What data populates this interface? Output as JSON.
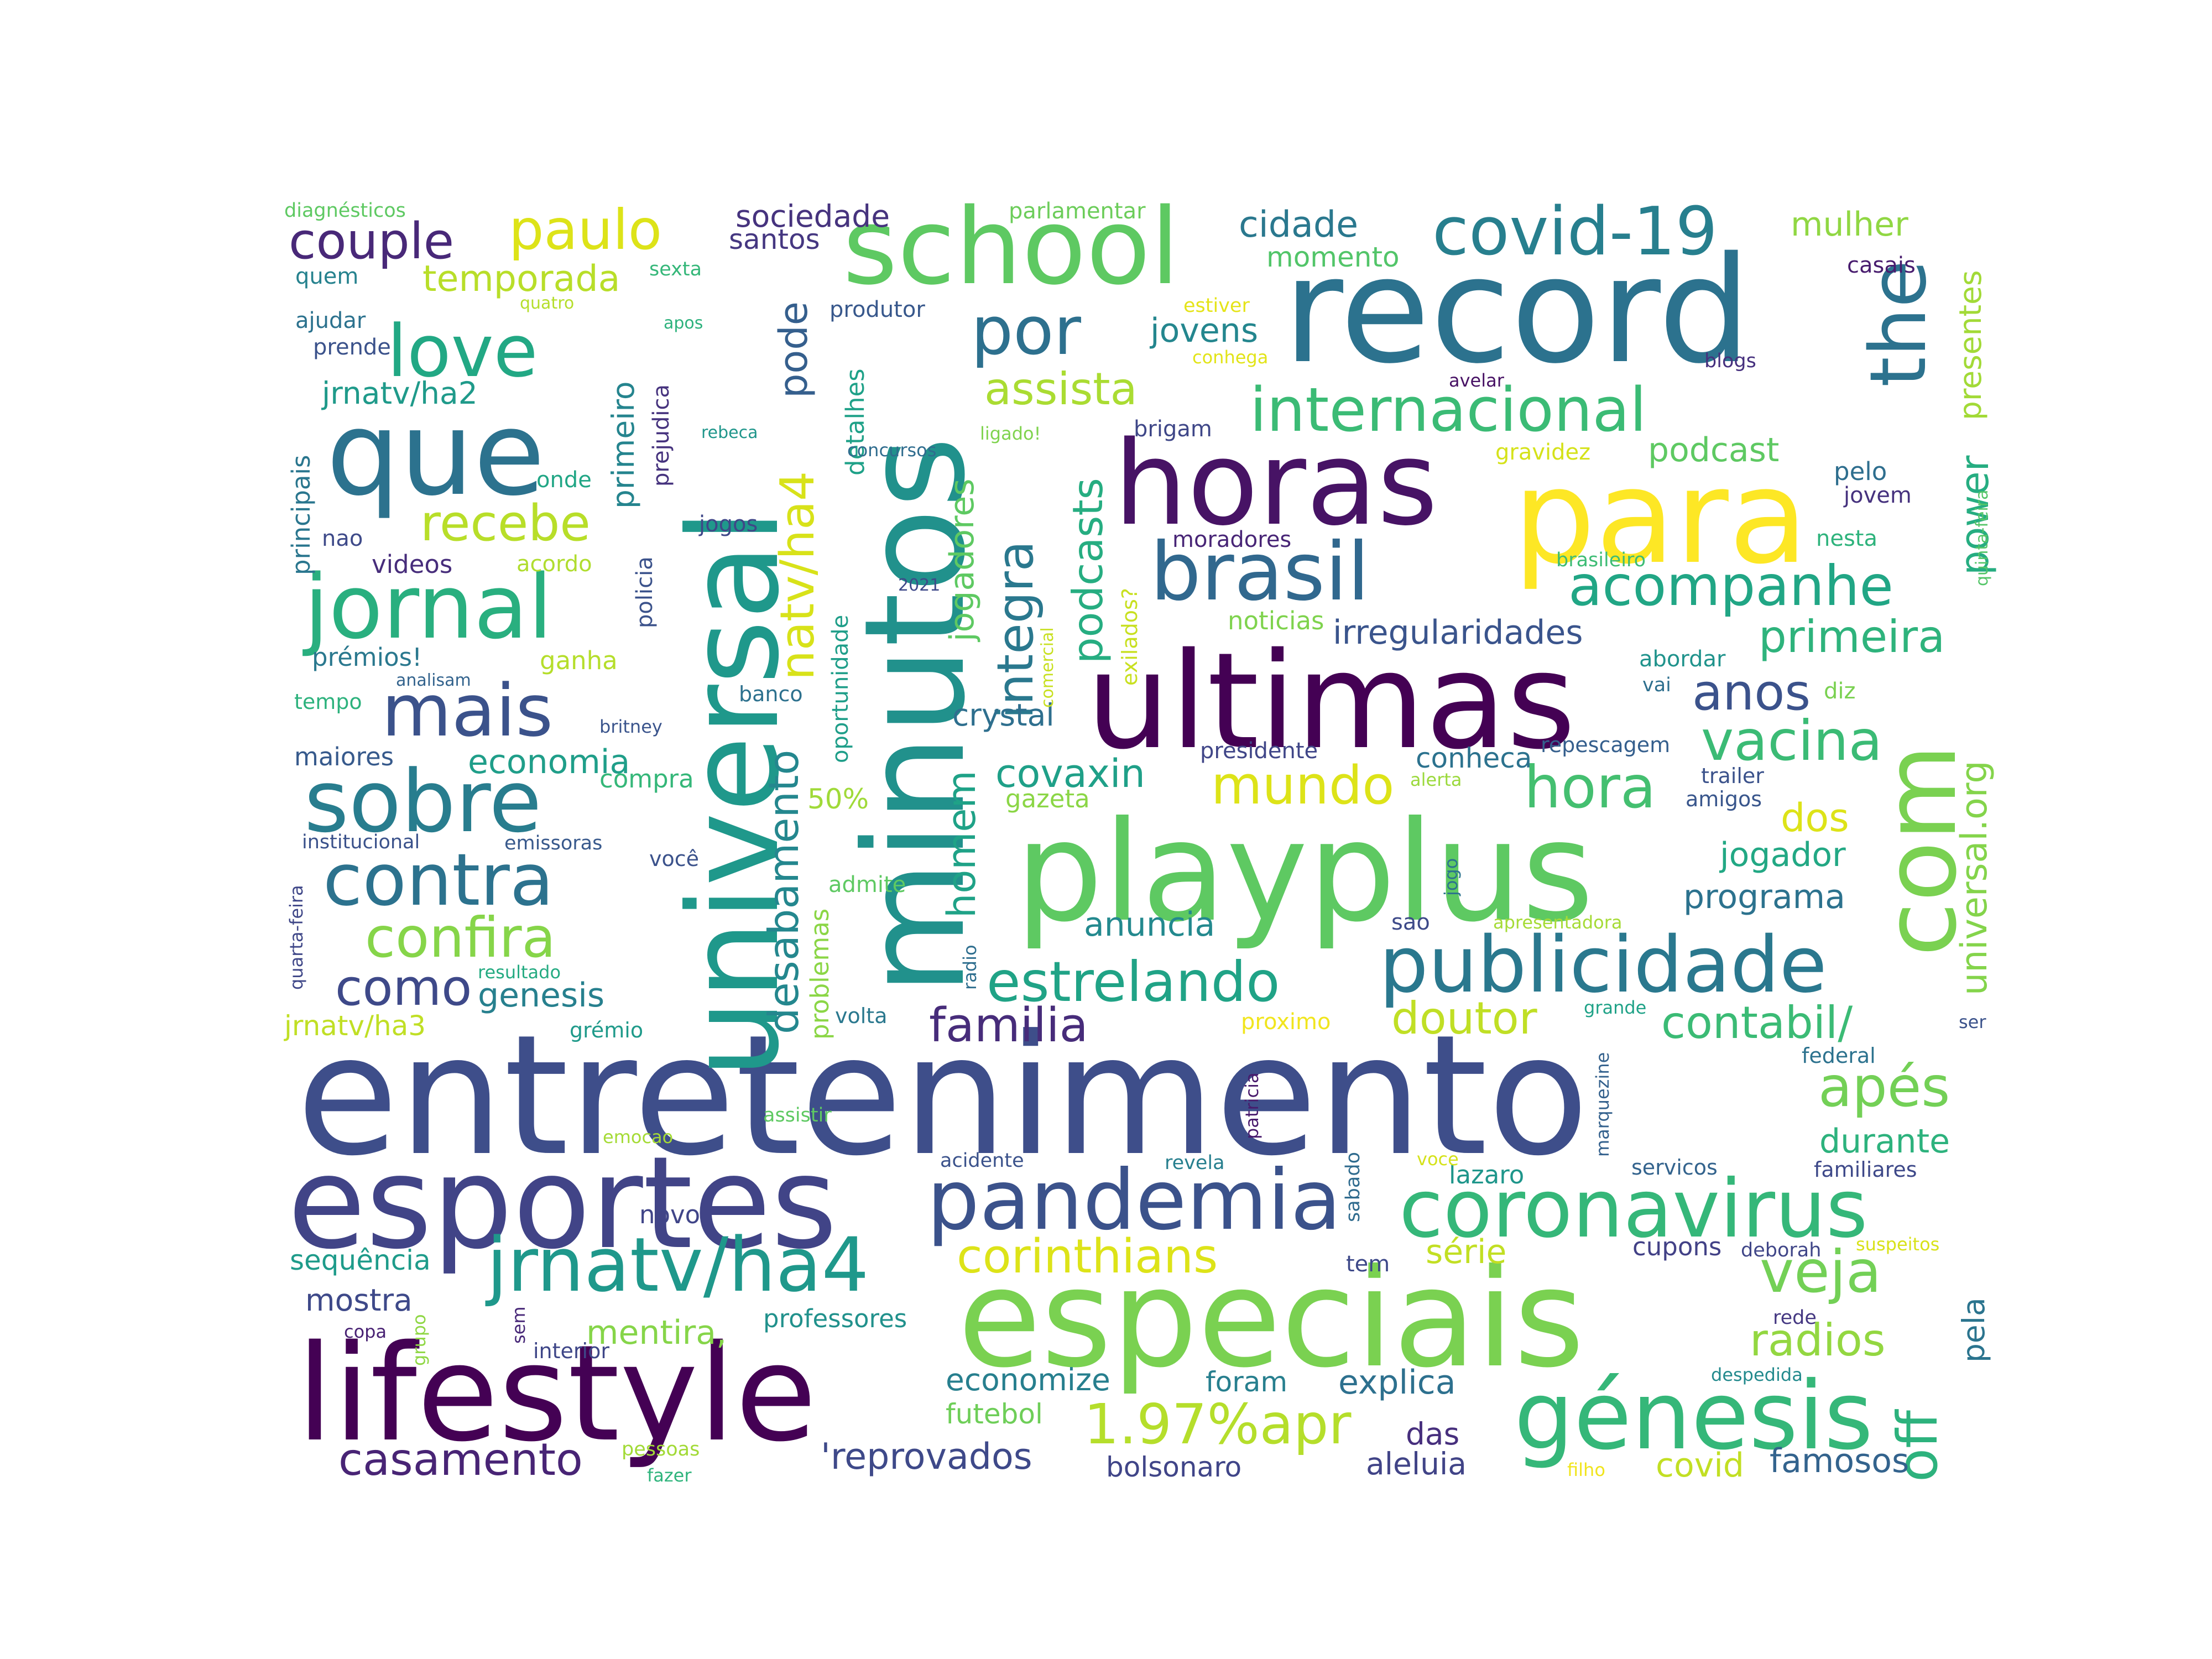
{
  "words": [
    {
      "text": "entretenimento",
      "color": "#3e4e8a"
    },
    {
      "text": "especiais",
      "color": "#7ad151"
    },
    {
      "text": "playplus",
      "color": "#5ec962"
    },
    {
      "text": "minutos",
      "color": "#21918c"
    },
    {
      "text": "universal",
      "color": "#1f988b"
    },
    {
      "text": "record",
      "color": "#2c728e"
    },
    {
      "text": "ultimas",
      "color": "#440154"
    },
    {
      "text": "horas",
      "color": "#471365"
    },
    {
      "text": "para",
      "color": "#fde725"
    },
    {
      "text": "esportes",
      "color": "#414487"
    },
    {
      "text": "lifestyle",
      "color": "#440154"
    },
    {
      "text": "school",
      "color": "#5ec962"
    },
    {
      "text": "que",
      "color": "#2c728e"
    },
    {
      "text": "pandemia",
      "color": "#3b528b"
    },
    {
      "text": "génesis",
      "color": "#35b779"
    },
    {
      "text": "coronavirus",
      "color": "#35b779"
    },
    {
      "text": "publicidade",
      "color": "#2a788e"
    },
    {
      "text": "com",
      "color": "#7ad151"
    },
    {
      "text": "jornal",
      "color": "#29af7f"
    },
    {
      "text": "brasil",
      "color": "#31688e"
    },
    {
      "text": "sobre",
      "color": "#287d8e"
    },
    {
      "text": "jrnatv/ha4",
      "color": "#1f988b"
    },
    {
      "text": "covid-19",
      "color": "#277f8e"
    },
    {
      "text": "love",
      "color": "#22a884"
    },
    {
      "text": "mais",
      "color": "#3b528b"
    },
    {
      "text": "contra",
      "color": "#2c728e"
    },
    {
      "text": "the",
      "color": "#2c728e"
    },
    {
      "text": "internacional",
      "color": "#3bbb75"
    },
    {
      "text": "acompanhe",
      "color": "#21a685"
    },
    {
      "text": "hora",
      "color": "#44bf70"
    },
    {
      "text": "estrelando",
      "color": "#20a386"
    },
    {
      "text": "vacina",
      "color": "#3bbb75"
    },
    {
      "text": "por",
      "color": "#2d708e"
    },
    {
      "text": "paulo",
      "color": "#dde318"
    },
    {
      "text": "couple",
      "color": "#482878"
    },
    {
      "text": "confira",
      "color": "#86d549"
    },
    {
      "text": "mundo",
      "color": "#dde318"
    },
    {
      "text": "veja",
      "color": "#73d056"
    },
    {
      "text": "off",
      "color": "#2db27d"
    },
    {
      "text": "corinthians",
      "color": "#dde318"
    },
    {
      "text": "1.97%apr",
      "color": "#b5de2b"
    },
    {
      "text": "apés",
      "color": "#73d056"
    },
    {
      "text": "casamento",
      "color": "#482475"
    },
    {
      "text": "como",
      "color": "#3e4989"
    },
    {
      "text": "familia",
      "color": "#472c7a"
    },
    {
      "text": "natv/ha4",
      "color": "#d8e219"
    },
    {
      "text": "integra",
      "color": "#2a788e"
    },
    {
      "text": "assista",
      "color": "#aadc32"
    },
    {
      "text": "doutor",
      "color": "#c0df25"
    },
    {
      "text": "primeira",
      "color": "#2eb37c"
    },
    {
      "text": "anos",
      "color": "#3b528b"
    },
    {
      "text": "recebe",
      "color": "#b8de29"
    },
    {
      "text": "contabil/",
      "color": "#3bbb75"
    },
    {
      "text": "podcasts",
      "color": "#26ad81"
    },
    {
      "text": "power",
      "color": "#26ad81"
    },
    {
      "text": "desabamento",
      "color": "#24878e"
    },
    {
      "text": "homem",
      "color": "#1fa287"
    },
    {
      "text": "jogadores",
      "color": "#5ec962"
    },
    {
      "text": "universal.org",
      "color": "#84d44b"
    },
    {
      "text": "radios",
      "color": "#93d741"
    },
    {
      "text": "pode",
      "color": "#355f8d"
    },
    {
      "text": "covaxin",
      "color": "#1fa088"
    },
    {
      "text": "cidade",
      "color": "#2a788e"
    },
    {
      "text": "temporada",
      "color": "#b8de29"
    },
    {
      "text": "dos",
      "color": "#dde318"
    },
    {
      "text": "programa",
      "color": "#2c728e"
    },
    {
      "text": "jogador",
      "color": "#22a884"
    },
    {
      "text": "durante",
      "color": "#2db27d"
    },
    {
      "text": "economia",
      "color": "#1f9e89"
    },
    {
      "text": "genesis",
      "color": "#27808e"
    },
    {
      "text": "mulher",
      "color": "#90d743"
    },
    {
      "text": "jovens",
      "color": "#24868e"
    },
    {
      "text": "podcast",
      "color": "#5ec962"
    },
    {
      "text": "irregularidades",
      "color": "#3a548c"
    },
    {
      "text": "crystal",
      "color": "#2e6f8e"
    },
    {
      "text": "anuncia",
      "color": "#23898e"
    },
    {
      "text": "mentira,",
      "color": "#86d549"
    },
    {
      "text": "explica",
      "color": "#2d708e"
    },
    {
      "text": "presentes",
      "color": "#a2da37"
    },
    {
      "text": "sociedade",
      "color": "#46337e"
    },
    {
      "text": "santos",
      "color": "#453781"
    },
    {
      "text": "momento",
      "color": "#52c569"
    },
    {
      "text": "conheca",
      "color": "#2c728e"
    },
    {
      "text": "primeiro",
      "color": "#25848e"
    },
    {
      "text": "'reprovados",
      "color": "#3e4989"
    },
    {
      "text": "famosos",
      "color": "#33638d"
    },
    {
      "text": "economize",
      "color": "#277f8e"
    },
    {
      "text": "futebol",
      "color": "#6ece58"
    },
    {
      "text": "das",
      "color": "#472f7d"
    },
    {
      "text": "aleluia",
      "color": "#414487"
    },
    {
      "text": "covid",
      "color": "#c2df23"
    },
    {
      "text": "bolsonaro",
      "color": "#404588"
    },
    {
      "text": "jrnatv/ha2",
      "color": "#1f9a8a"
    },
    {
      "text": "jrnatv/ha3",
      "color": "#c0df25"
    },
    {
      "text": "compra",
      "color": "#35b779"
    },
    {
      "text": "50%",
      "color": "#a0da39"
    },
    {
      "text": "gazeta",
      "color": "#8bd646"
    },
    {
      "text": "sequência",
      "color": "#1e9b8a"
    },
    {
      "text": "mostra",
      "color": "#3e4989"
    },
    {
      "text": "professores",
      "color": "#21918c"
    },
    {
      "text": "foram",
      "color": "#277f8e"
    },
    {
      "text": "lazaro",
      "color": "#1f968b"
    },
    {
      "text": "cupons",
      "color": "#424186"
    },
    {
      "text": "novo",
      "color": "#404588"
    },
    {
      "text": "série",
      "color": "#c2df23"
    },
    {
      "text": "pela",
      "color": "#2b748e"
    },
    {
      "text": "detalhes",
      "color": "#1fa188"
    },
    {
      "text": "oportunidade",
      "color": "#1f9e89"
    },
    {
      "text": "problemas",
      "color": "#8bd646"
    },
    {
      "text": "admite",
      "color": "#5ec962"
    },
    {
      "text": "prejudica",
      "color": "#46337e"
    },
    {
      "text": "policia",
      "color": "#3b528b"
    },
    {
      "text": "prémios!",
      "color": "#2a788e"
    },
    {
      "text": "ganha",
      "color": "#b5de2b"
    },
    {
      "text": "maiores",
      "color": "#375a8c"
    },
    {
      "text": "principais",
      "color": "#2a768e"
    },
    {
      "text": "videos",
      "color": "#472d7b"
    },
    {
      "text": "acordo",
      "color": "#b0dd2f"
    },
    {
      "text": "nao",
      "color": "#3e4a89"
    },
    {
      "text": "onde",
      "color": "#21a685"
    },
    {
      "text": "jogos",
      "color": "#3f4788"
    },
    {
      "text": "quem",
      "color": "#26828e"
    },
    {
      "text": "ajudar",
      "color": "#2c728e"
    },
    {
      "text": "prende",
      "color": "#3b528b"
    },
    {
      "text": "produtor",
      "color": "#38588c"
    },
    {
      "text": "sexta",
      "color": "#35b779"
    },
    {
      "text": "apos",
      "color": "#2db27d"
    },
    {
      "text": "quatro",
      "color": "#b5de2b"
    },
    {
      "text": "rebeca",
      "color": "#1f968b"
    },
    {
      "text": "concursos",
      "color": "#2f6c8e"
    },
    {
      "text": "ligado!",
      "color": "#7fd34e"
    },
    {
      "text": "brigam",
      "color": "#3f4788"
    },
    {
      "text": "moradores",
      "color": "#482576"
    },
    {
      "text": "noticias",
      "color": "#7fd34e"
    },
    {
      "text": "2021",
      "color": "#3e4989"
    },
    {
      "text": "comercial",
      "color": "#c8e020"
    },
    {
      "text": "exilados?",
      "color": "#c8e020"
    },
    {
      "text": "banco",
      "color": "#2d718e"
    },
    {
      "text": "gravidez",
      "color": "#d5e21a"
    },
    {
      "text": "pelo",
      "color": "#2e6e8e"
    },
    {
      "text": "jovem",
      "color": "#46327e"
    },
    {
      "text": "nesta",
      "color": "#2eb37c"
    },
    {
      "text": "brasileiro",
      "color": "#3dbc74"
    },
    {
      "text": "quinta-feira",
      "color": "#54c568"
    },
    {
      "text": "abordar",
      "color": "#20938c"
    },
    {
      "text": "vai",
      "color": "#2e6f8e"
    },
    {
      "text": "diz",
      "color": "#7ad151"
    },
    {
      "text": "repescagem",
      "color": "#355f8d"
    },
    {
      "text": "presidente",
      "color": "#404688"
    },
    {
      "text": "alerta",
      "color": "#9bd93c"
    },
    {
      "text": "trailer",
      "color": "#3b528b"
    },
    {
      "text": "amigos",
      "color": "#39568c"
    },
    {
      "text": "estiver",
      "color": "#e5e419"
    },
    {
      "text": "conhega",
      "color": "#e2e418"
    },
    {
      "text": "avelar",
      "color": "#471164"
    },
    {
      "text": "blogs",
      "color": "#46307e"
    },
    {
      "text": "casais",
      "color": "#481c6e"
    },
    {
      "text": "parlamentar",
      "color": "#6ccd5a"
    },
    {
      "text": "diagnésticos",
      "color": "#5ec962"
    },
    {
      "text": "analisam",
      "color": "#33638d"
    },
    {
      "text": "tempo",
      "color": "#2db27d"
    },
    {
      "text": "britney",
      "color": "#3a548c"
    },
    {
      "text": "institucional",
      "color": "#3b528b"
    },
    {
      "text": "emissoras",
      "color": "#38598c"
    },
    {
      "text": "você",
      "color": "#3b528b"
    },
    {
      "text": "resultado",
      "color": "#25ab82"
    },
    {
      "text": "quarta-feira",
      "color": "#3f4788"
    },
    {
      "text": "grémio",
      "color": "#1f9a8a"
    },
    {
      "text": "volta",
      "color": "#2a788e"
    },
    {
      "text": "radio",
      "color": "#2e6e8e"
    },
    {
      "text": "emocao",
      "color": "#a5db36"
    },
    {
      "text": "assistir",
      "color": "#5ec962"
    },
    {
      "text": "acidente",
      "color": "#3b528b"
    },
    {
      "text": "patricia",
      "color": "#481a6c"
    },
    {
      "text": "proximo",
      "color": "#f1e51d"
    },
    {
      "text": "revela",
      "color": "#277f8e"
    },
    {
      "text": "voce",
      "color": "#d5e21a"
    },
    {
      "text": "sabado",
      "color": "#2f6b8e"
    },
    {
      "text": "servicos",
      "color": "#33638d"
    },
    {
      "text": "familiares",
      "color": "#3e4989"
    },
    {
      "text": "marquezine",
      "color": "#34618d"
    },
    {
      "text": "grande",
      "color": "#1fa287"
    },
    {
      "text": "federal",
      "color": "#2c728e"
    },
    {
      "text": "ser",
      "color": "#3b528b"
    },
    {
      "text": "jogo",
      "color": "#2c738e"
    },
    {
      "text": "sao",
      "color": "#3e4a89"
    },
    {
      "text": "apresentadora",
      "color": "#a5db36"
    },
    {
      "text": "deborah",
      "color": "#404688"
    },
    {
      "text": "suspeitos",
      "color": "#d8e219"
    },
    {
      "text": "tem",
      "color": "#3e4989"
    },
    {
      "text": "rede",
      "color": "#453882"
    },
    {
      "text": "despedida",
      "color": "#238a8d"
    },
    {
      "text": "filho",
      "color": "#f1e51d"
    },
    {
      "text": "copa",
      "color": "#482173"
    },
    {
      "text": "grupo",
      "color": "#8fd744"
    },
    {
      "text": "sem",
      "color": "#482878"
    },
    {
      "text": "interior",
      "color": "#3f4788"
    },
    {
      "text": "pessoas",
      "color": "#a2da37"
    },
    {
      "text": "fazer",
      "color": "#2fb47c"
    }
  ]
}
